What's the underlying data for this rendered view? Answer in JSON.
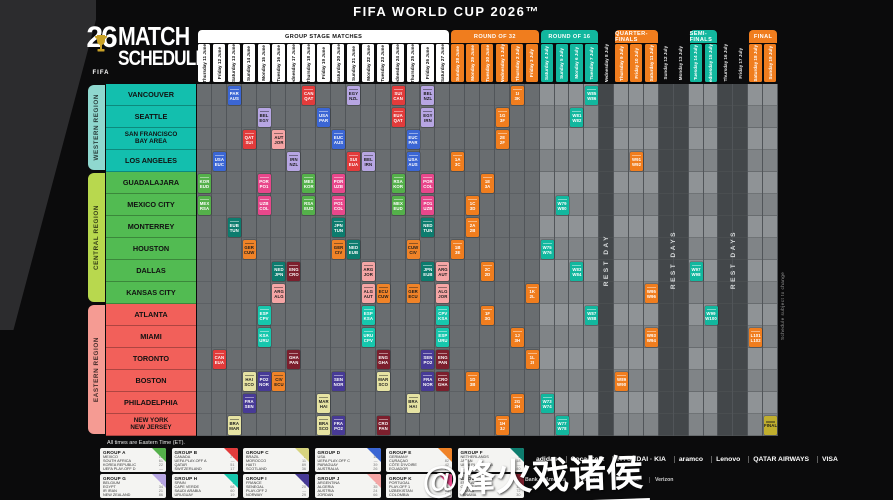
{
  "title": "FIFA WORLD CUP 2026™",
  "logo": {
    "year": "26",
    "brand": "FIFA",
    "line1": "MATCH",
    "line2": "SCHEDULE"
  },
  "note": "All times are Eastern Time (ET).",
  "side_note": "Schedule subject to change",
  "watermark": "@烽火戏诸侯",
  "rest_labels": [
    {
      "start": 28,
      "end": 28,
      "label": "REST DAY"
    },
    {
      "start": 32,
      "end": 33,
      "label": "REST DAYS"
    },
    {
      "start": 36,
      "end": 37,
      "label": "REST DAYS"
    }
  ],
  "banners": [
    {
      "label": "GROUP STAGE MATCHES",
      "start": 1,
      "end": 17,
      "bg": "#ffffff",
      "fg": "#111111"
    },
    {
      "label": "ROUND OF 32",
      "start": 18,
      "end": 23,
      "bg": "#f07d1e",
      "fg": "#ffffff"
    },
    {
      "label": "ROUND OF 16",
      "start": 24,
      "end": 27,
      "bg": "#12b79e",
      "fg": "#ffffff"
    },
    {
      "label": "QUARTER-FINALS",
      "start": 29,
      "end": 31,
      "bg": "#f07d1e",
      "fg": "#ffffff"
    },
    {
      "label": "SEMI-FINALS",
      "start": 34,
      "end": 35,
      "bg": "#12b79e",
      "fg": "#ffffff"
    },
    {
      "label": "FINAL",
      "start": 38,
      "end": 39,
      "bg": "#f07d1e",
      "fg": "#ffffff"
    }
  ],
  "columns": [
    {
      "day": "Thursday",
      "date": "11 June",
      "stage": "group"
    },
    {
      "day": "Friday",
      "date": "12 June",
      "stage": "group"
    },
    {
      "day": "Saturday",
      "date": "13 June",
      "stage": "group"
    },
    {
      "day": "Sunday",
      "date": "14 June",
      "stage": "group"
    },
    {
      "day": "Monday",
      "date": "15 June",
      "stage": "group"
    },
    {
      "day": "Tuesday",
      "date": "16 June",
      "stage": "group"
    },
    {
      "day": "Wednesday",
      "date": "17 June",
      "stage": "group"
    },
    {
      "day": "Thursday",
      "date": "18 June",
      "stage": "group"
    },
    {
      "day": "Friday",
      "date": "19 June",
      "stage": "group"
    },
    {
      "day": "Saturday",
      "date": "20 June",
      "stage": "group"
    },
    {
      "day": "Sunday",
      "date": "21 June",
      "stage": "group"
    },
    {
      "day": "Monday",
      "date": "22 June",
      "stage": "group"
    },
    {
      "day": "Tuesday",
      "date": "23 June",
      "stage": "group"
    },
    {
      "day": "Wednesday",
      "date": "24 June",
      "stage": "group"
    },
    {
      "day": "Thursday",
      "date": "25 June",
      "stage": "group"
    },
    {
      "day": "Friday",
      "date": "26 June",
      "stage": "group"
    },
    {
      "day": "Saturday",
      "date": "27 June",
      "stage": "group"
    },
    {
      "day": "Sunday",
      "date": "28 June",
      "stage": "r32"
    },
    {
      "day": "Monday",
      "date": "29 June",
      "stage": "r32"
    },
    {
      "day": "Tuesday",
      "date": "30 June",
      "stage": "r32"
    },
    {
      "day": "Wednesday",
      "date": "1 July",
      "stage": "r32"
    },
    {
      "day": "Thursday",
      "date": "2 July",
      "stage": "r32"
    },
    {
      "day": "Friday",
      "date": "3 July",
      "stage": "r32"
    },
    {
      "day": "Saturday",
      "date": "4 July",
      "stage": "r16"
    },
    {
      "day": "Sunday",
      "date": "5 July",
      "stage": "r16"
    },
    {
      "day": "Monday",
      "date": "6 July",
      "stage": "r16"
    },
    {
      "day": "Tuesday",
      "date": "7 July",
      "stage": "r16"
    },
    {
      "day": "Wednesday",
      "date": "8 July",
      "stage": "rest"
    },
    {
      "day": "Thursday",
      "date": "9 July",
      "stage": "qf"
    },
    {
      "day": "Friday",
      "date": "10 July",
      "stage": "qf"
    },
    {
      "day": "Saturday",
      "date": "11 July",
      "stage": "qf"
    },
    {
      "day": "Sunday",
      "date": "12 July",
      "stage": "rest"
    },
    {
      "day": "Monday",
      "date": "13 July",
      "stage": "rest"
    },
    {
      "day": "Tuesday",
      "date": "14 July",
      "stage": "sf"
    },
    {
      "day": "Wednesday",
      "date": "15 July",
      "stage": "sf"
    },
    {
      "day": "Thursday",
      "date": "16 July",
      "stage": "rest"
    },
    {
      "day": "Friday",
      "date": "17 July",
      "stage": "rest"
    },
    {
      "day": "Saturday",
      "date": "18 July",
      "stage": "final"
    },
    {
      "day": "Sunday",
      "date": "19 July",
      "stage": "final"
    }
  ],
  "regions": [
    {
      "name": "WESTERN REGION",
      "label_bg": "#8fd8cf",
      "city_bg": "#13bfae",
      "cities": [
        "VANCOUVER",
        "SEATTLE",
        "SAN FRANCISCO\nBAY AREA",
        "LOS ANGELES"
      ]
    },
    {
      "name": "CENTRAL REGION",
      "label_bg": "#b8d84e",
      "city_bg": "#52bb52",
      "cities": [
        "GUADALAJARA",
        "MEXICO CITY",
        "MONTERREY",
        "HOUSTON",
        "DALLAS",
        "KANSAS CITY"
      ]
    },
    {
      "name": "EASTERN REGION",
      "label_bg": "#f59b93",
      "city_bg": "#f2605a",
      "cities": [
        "ATLANTA",
        "MIAMI",
        "TORONTO",
        "BOSTON",
        "PHILADELPHIA",
        "NEW YORK\nNEW JERSEY"
      ]
    }
  ],
  "colors": {
    "A": "#54b04a",
    "B": "#e23b3b",
    "C": "#e6e3a3",
    "D": "#3b66d4",
    "E": "#f08328",
    "F": "#0d7c6e",
    "G": "#b7a6e3",
    "H": "#16c7ad",
    "I": "#473a96",
    "J": "#f5a5a5",
    "K": "#e8478b",
    "L": "#7c1f2d",
    "r32": "#f07d1e",
    "r16": "#12b79e",
    "qf": "#f07d1e",
    "sf": "#12b79e",
    "bronze": "#f07d1e",
    "final": "#c0ae2e"
  },
  "chart_data": {
    "type": "table",
    "title": "FIFA World Cup 2026 Match Schedule",
    "x_axis": "Match days, Thursday 11 June to Sunday 19 July 2026",
    "y_axis": "Host cities grouped by Western, Central and Eastern regions",
    "matches": [
      [
        1,
        5,
        "A",
        "MEX",
        "RSA"
      ],
      [
        1,
        4,
        "A",
        "KOR",
        "EUD"
      ],
      [
        8,
        4,
        "A",
        "MEX",
        "KOR"
      ],
      [
        8,
        5,
        "A",
        "RSA",
        "EUD"
      ],
      [
        14,
        5,
        "A",
        "MEX",
        "EUD"
      ],
      [
        14,
        4,
        "A",
        "RSA",
        "KOR"
      ],
      [
        2,
        12,
        "B",
        "CAN",
        "EUA"
      ],
      [
        4,
        2,
        "B",
        "QAT",
        "SUI"
      ],
      [
        8,
        0,
        "B",
        "CAN",
        "QAT"
      ],
      [
        11,
        3,
        "B",
        "SUI",
        "EUA"
      ],
      [
        14,
        0,
        "B",
        "SUI",
        "CAN"
      ],
      [
        14,
        1,
        "B",
        "EUA",
        "QAT"
      ],
      [
        3,
        15,
        "C",
        "BRA",
        "MAR"
      ],
      [
        4,
        13,
        "C",
        "HAI",
        "SCO"
      ],
      [
        9,
        15,
        "C",
        "BRA",
        "SCO"
      ],
      [
        9,
        14,
        "C",
        "MAR",
        "HAI"
      ],
      [
        13,
        13,
        "C",
        "MAR",
        "SCO"
      ],
      [
        15,
        14,
        "C",
        "BRA",
        "HAI"
      ],
      [
        2,
        3,
        "D",
        "USA",
        "EUC"
      ],
      [
        3,
        0,
        "D",
        "PAR",
        "AUS"
      ],
      [
        9,
        1,
        "D",
        "USA",
        "PAR"
      ],
      [
        10,
        2,
        "D",
        "EUC",
        "AUS"
      ],
      [
        15,
        3,
        "D",
        "USA",
        "AUS"
      ],
      [
        15,
        2,
        "D",
        "EUC",
        "PAR"
      ],
      [
        4,
        7,
        "E",
        "GER",
        "CUW"
      ],
      [
        6,
        13,
        "E",
        "CIV",
        "ECU"
      ],
      [
        10,
        7,
        "E",
        "GER",
        "CIV"
      ],
      [
        13,
        9,
        "E",
        "ECU",
        "CUW"
      ],
      [
        15,
        9,
        "E",
        "GER",
        "ECU"
      ],
      [
        15,
        7,
        "E",
        "CUW",
        "CIV"
      ],
      [
        3,
        6,
        "F",
        "EUB",
        "TUN"
      ],
      [
        6,
        8,
        "F",
        "NED",
        "JPN"
      ],
      [
        10,
        6,
        "F",
        "JPN",
        "TUN"
      ],
      [
        11,
        7,
        "F",
        "NED",
        "EUB"
      ],
      [
        16,
        6,
        "F",
        "NED",
        "TUN"
      ],
      [
        16,
        8,
        "F",
        "JPN",
        "EUB"
      ],
      [
        5,
        1,
        "G",
        "BEL",
        "EGY"
      ],
      [
        7,
        3,
        "G",
        "IRN",
        "NZL"
      ],
      [
        11,
        0,
        "G",
        "EGY",
        "NZL"
      ],
      [
        12,
        3,
        "G",
        "BEL",
        "IRN"
      ],
      [
        16,
        0,
        "G",
        "BEL",
        "NZL"
      ],
      [
        16,
        1,
        "G",
        "EGY",
        "IRN"
      ],
      [
        5,
        10,
        "H",
        "ESP",
        "CPV"
      ],
      [
        5,
        11,
        "H",
        "KSA",
        "URU"
      ],
      [
        12,
        10,
        "H",
        "ESP",
        "KSA"
      ],
      [
        12,
        11,
        "H",
        "URU",
        "CPV"
      ],
      [
        17,
        11,
        "H",
        "ESP",
        "URU"
      ],
      [
        17,
        10,
        "H",
        "CPV",
        "KSA"
      ],
      [
        4,
        14,
        "I",
        "FRA",
        "SEN"
      ],
      [
        5,
        13,
        "I",
        "PO2",
        "NOR"
      ],
      [
        10,
        15,
        "I",
        "FRA",
        "PO2"
      ],
      [
        10,
        13,
        "I",
        "SEN",
        "NOR"
      ],
      [
        16,
        13,
        "I",
        "FRA",
        "NOR"
      ],
      [
        16,
        12,
        "I",
        "SEN",
        "PO2"
      ],
      [
        6,
        9,
        "J",
        "ARG",
        "ALG"
      ],
      [
        6,
        2,
        "J",
        "AUT",
        "JOR"
      ],
      [
        12,
        8,
        "J",
        "ARG",
        "JOR"
      ],
      [
        12,
        9,
        "J",
        "ALG",
        "AUT"
      ],
      [
        17,
        8,
        "J",
        "ARG",
        "AUT"
      ],
      [
        17,
        9,
        "J",
        "ALG",
        "JOR"
      ],
      [
        5,
        4,
        "K",
        "POR",
        "PO1"
      ],
      [
        5,
        5,
        "K",
        "UZB",
        "COL"
      ],
      [
        10,
        4,
        "K",
        "POR",
        "UZB"
      ],
      [
        10,
        5,
        "K",
        "PO1",
        "COL"
      ],
      [
        16,
        4,
        "K",
        "POR",
        "COL"
      ],
      [
        16,
        5,
        "K",
        "PO1",
        "UZB"
      ],
      [
        7,
        12,
        "L",
        "GHA",
        "PAN"
      ],
      [
        7,
        8,
        "L",
        "ENG",
        "CRO"
      ],
      [
        13,
        12,
        "L",
        "ENG",
        "GHA"
      ],
      [
        13,
        15,
        "L",
        "CRO",
        "PAN"
      ],
      [
        17,
        12,
        "L",
        "ENG",
        "PAN"
      ],
      [
        17,
        13,
        "L",
        "CRO",
        "GHA"
      ],
      [
        18,
        3,
        "r32",
        "1A",
        "3C"
      ],
      [
        18,
        7,
        "r32",
        "1B",
        "3E"
      ],
      [
        19,
        6,
        "r32",
        "2A",
        "2B"
      ],
      [
        19,
        5,
        "r32",
        "1C",
        "3D"
      ],
      [
        19,
        13,
        "r32",
        "1D",
        "3B"
      ],
      [
        20,
        4,
        "r32",
        "1E",
        "3A"
      ],
      [
        20,
        8,
        "r32",
        "2C",
        "2D"
      ],
      [
        20,
        10,
        "r32",
        "1F",
        "3G"
      ],
      [
        21,
        1,
        "r32",
        "1G",
        "3F"
      ],
      [
        21,
        2,
        "r32",
        "2E",
        "2F"
      ],
      [
        21,
        15,
        "r32",
        "1H",
        "3J"
      ],
      [
        22,
        0,
        "r32",
        "1I",
        "3K"
      ],
      [
        22,
        14,
        "r32",
        "2G",
        "2H"
      ],
      [
        22,
        11,
        "r32",
        "1J",
        "3H"
      ],
      [
        23,
        9,
        "r32",
        "1K",
        "2L"
      ],
      [
        23,
        12,
        "r32",
        "1L",
        "2I"
      ],
      [
        24,
        14,
        "r16",
        "W73",
        "W74"
      ],
      [
        24,
        7,
        "r16",
        "W75",
        "W76"
      ],
      [
        25,
        15,
        "r16",
        "W77",
        "W78"
      ],
      [
        25,
        5,
        "r16",
        "W79",
        "W80"
      ],
      [
        26,
        1,
        "r16",
        "W81",
        "W82"
      ],
      [
        26,
        8,
        "r16",
        "W83",
        "W84"
      ],
      [
        27,
        0,
        "r16",
        "W85",
        "W86"
      ],
      [
        27,
        10,
        "r16",
        "W87",
        "W88"
      ],
      [
        29,
        13,
        "qf",
        "W89",
        "W90"
      ],
      [
        30,
        3,
        "qf",
        "W91",
        "W92"
      ],
      [
        31,
        11,
        "qf",
        "W93",
        "W94"
      ],
      [
        31,
        9,
        "qf",
        "W95",
        "W96"
      ],
      [
        34,
        8,
        "sf",
        "W97",
        "W98"
      ],
      [
        35,
        10,
        "sf",
        "W99",
        "W100"
      ],
      [
        38,
        11,
        "bronze",
        "L101",
        "L102"
      ],
      [
        39,
        15,
        "final",
        "FINAL",
        ""
      ]
    ]
  },
  "groups": [
    {
      "id": "GROUP A",
      "color": "#54b04a",
      "teams": [
        [
          "MEXICO",
          "MEX",
          "15"
        ],
        [
          "SOUTH AFRICA",
          "RSA",
          "61"
        ],
        [
          "KOREA REPUBLIC",
          "KOR",
          "22"
        ],
        [
          "UEFA PLAY-OFF D",
          "EUD",
          "—"
        ]
      ]
    },
    {
      "id": "GROUP B",
      "color": "#e23b3b",
      "teams": [
        [
          "CANADA",
          "CAN",
          "27"
        ],
        [
          "UEFA PLAY-OFF A",
          "EUA",
          "—"
        ],
        [
          "QATAR",
          "QAT",
          "51"
        ],
        [
          "SWITZERLAND",
          "SUI",
          "17"
        ]
      ]
    },
    {
      "id": "GROUP C",
      "color": "#d6d37e",
      "teams": [
        [
          "BRAZIL",
          "BRA",
          "5"
        ],
        [
          "MOROCCO",
          "MAR",
          "11"
        ],
        [
          "HAITI",
          "HAI",
          "89"
        ],
        [
          "SCOTLAND",
          "SCO",
          "36"
        ]
      ]
    },
    {
      "id": "GROUP D",
      "color": "#3b66d4",
      "teams": [
        [
          "USA",
          "USA",
          "16"
        ],
        [
          "UEFA PLAY-OFF C",
          "EUC",
          "—"
        ],
        [
          "PARAGUAY",
          "PAR",
          "39"
        ],
        [
          "AUSTRALIA",
          "AUS",
          "26"
        ]
      ]
    },
    {
      "id": "GROUP E",
      "color": "#f08328",
      "teams": [
        [
          "GERMANY",
          "GER",
          "9"
        ],
        [
          "CURAÇAO",
          "CUW",
          "82"
        ],
        [
          "CÔTE D'IVOIRE",
          "CIV",
          "42"
        ],
        [
          "ECUADOR",
          "ECU",
          "23"
        ]
      ]
    },
    {
      "id": "GROUP F",
      "color": "#0d7c6e",
      "teams": [
        [
          "NETHERLANDS",
          "NED",
          "6"
        ],
        [
          "JAPAN",
          "JPN",
          "18"
        ],
        [
          "UEFA PLAY-OFF B",
          "EUB",
          "—"
        ],
        [
          "TUNISIA",
          "TUN",
          "40"
        ]
      ]
    },
    {
      "id": "GROUP G",
      "color": "#b7a6e3",
      "teams": [
        [
          "BELGIUM",
          "BEL",
          "8"
        ],
        [
          "EGYPT",
          "EGY",
          "34"
        ],
        [
          "IR IRAN",
          "IRN",
          "21"
        ],
        [
          "NEW ZEALAND",
          "NZL",
          "86"
        ]
      ]
    },
    {
      "id": "GROUP H",
      "color": "#16c7ad",
      "teams": [
        [
          "SPAIN",
          "ESP",
          "1"
        ],
        [
          "CAPE VERDE",
          "CPV",
          "68"
        ],
        [
          "SAUDI ARABIA",
          "KSA",
          "60"
        ],
        [
          "URUGUAY",
          "URU",
          "19"
        ]
      ]
    },
    {
      "id": "GROUP I",
      "color": "#473a96",
      "teams": [
        [
          "FRANCE",
          "FRA",
          "2"
        ],
        [
          "SENEGAL",
          "SEN",
          "20"
        ],
        [
          "PLAY-OFF 2",
          "PO2",
          "—"
        ],
        [
          "NORWAY",
          "NOR",
          "29"
        ]
      ]
    },
    {
      "id": "GROUP J",
      "color": "#f5a5a5",
      "teams": [
        [
          "ARGENTINA",
          "ARG",
          "3"
        ],
        [
          "ALGERIA",
          "ALG",
          "35"
        ],
        [
          "AUSTRIA",
          "AUT",
          "24"
        ],
        [
          "JORDAN",
          "JOR",
          "66"
        ]
      ]
    },
    {
      "id": "GROUP K",
      "color": "#e8478b",
      "teams": [
        [
          "PORTUGAL",
          "POR",
          "4"
        ],
        [
          "PLAY-OFF 1",
          "PO1",
          "—"
        ],
        [
          "UZBEKISTAN",
          "UZB",
          "55"
        ],
        [
          "COLOMBIA",
          "COL",
          "13"
        ]
      ]
    },
    {
      "id": "GROUP L",
      "color": "#7c1f2d",
      "teams": [
        [
          "ENGLAND",
          "ENG",
          "7"
        ],
        [
          "CROATIA",
          "CRO",
          "10"
        ],
        [
          "GHANA",
          "GHA",
          "72"
        ],
        [
          "PANAMA",
          "PAN",
          "30"
        ]
      ]
    }
  ],
  "sponsors_row1": [
    "adidas",
    "Coca-Cola",
    "HYUNDAI · KIA",
    "aramco",
    "Lenovo",
    "QATAR AIRWAYS",
    "VISA"
  ],
  "sponsors_row2": [
    "Bank of America",
    "Mengniu",
    "Hisense",
    "Verizon"
  ]
}
